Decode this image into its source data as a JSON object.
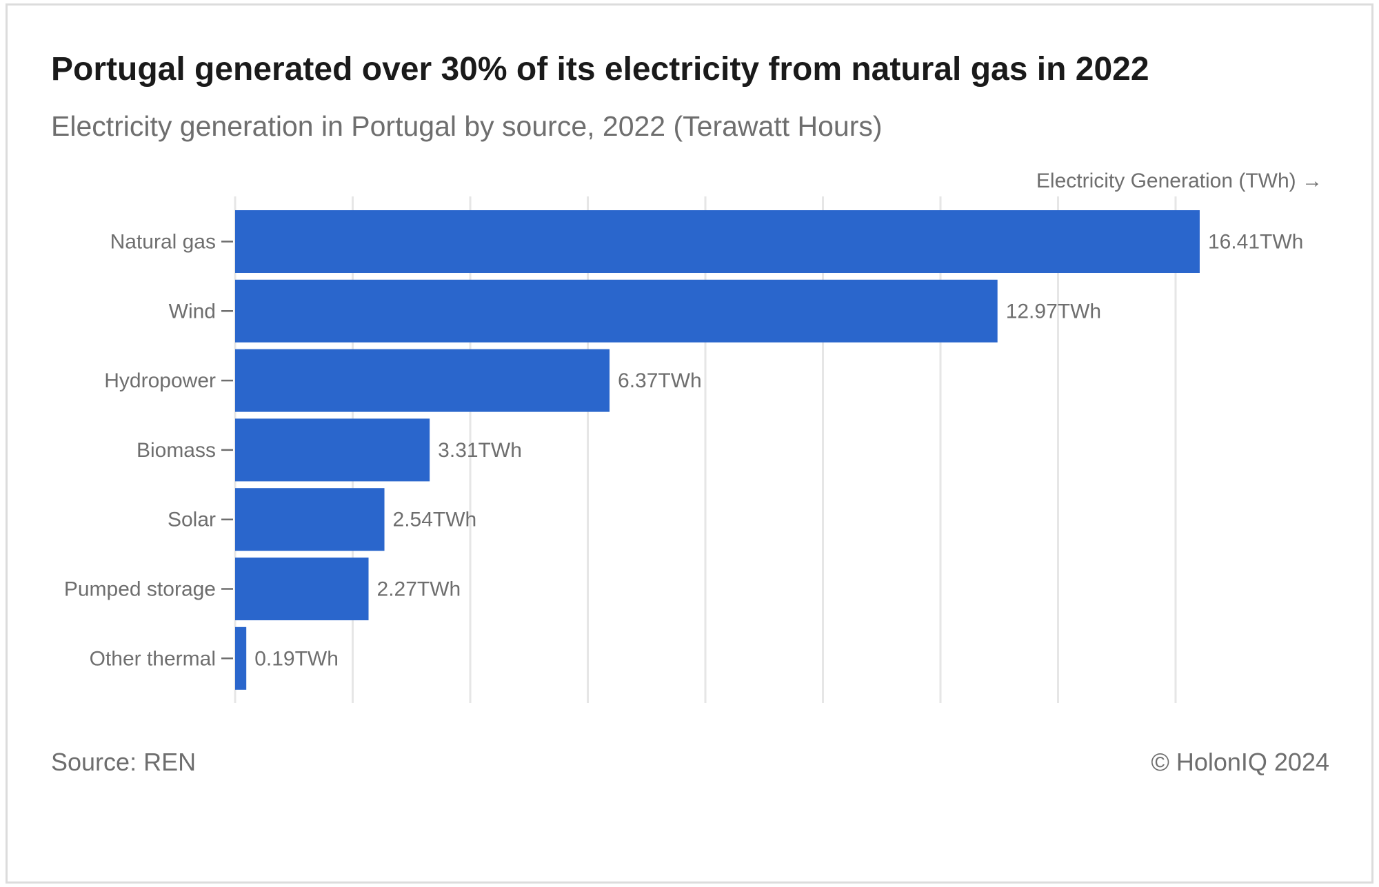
{
  "chart_data": {
    "type": "bar",
    "orientation": "horizontal",
    "title": "Portugal generated over 30% of its electricity from natural gas in 2022",
    "subtitle": "Electricity generation in Portugal by source, 2022 (Terawatt Hours)",
    "xlabel": "Electricity Generation (TWh) →",
    "ylabel": "",
    "categories": [
      "Natural gas",
      "Wind",
      "Hydropower",
      "Biomass",
      "Solar",
      "Pumped storage",
      "Other thermal"
    ],
    "values": [
      16.41,
      12.97,
      6.37,
      3.31,
      2.54,
      2.27,
      0.19
    ],
    "value_labels": [
      "16.41TWh",
      "12.97TWh",
      "6.37TWh",
      "3.31TWh",
      "2.54TWh",
      "2.27TWh",
      "0.19TWh"
    ],
    "unit_suffix": "TWh",
    "xlim": [
      0,
      18
    ],
    "x_gridlines": [
      0,
      2,
      4,
      6,
      8,
      10,
      12,
      14,
      16
    ],
    "grid": true,
    "legend": "none",
    "bar_color": "#2a66cc",
    "grid_color": "#e6e6e6"
  },
  "footer": {
    "source": "Source: REN",
    "credit": "© HolonIQ 2024"
  }
}
